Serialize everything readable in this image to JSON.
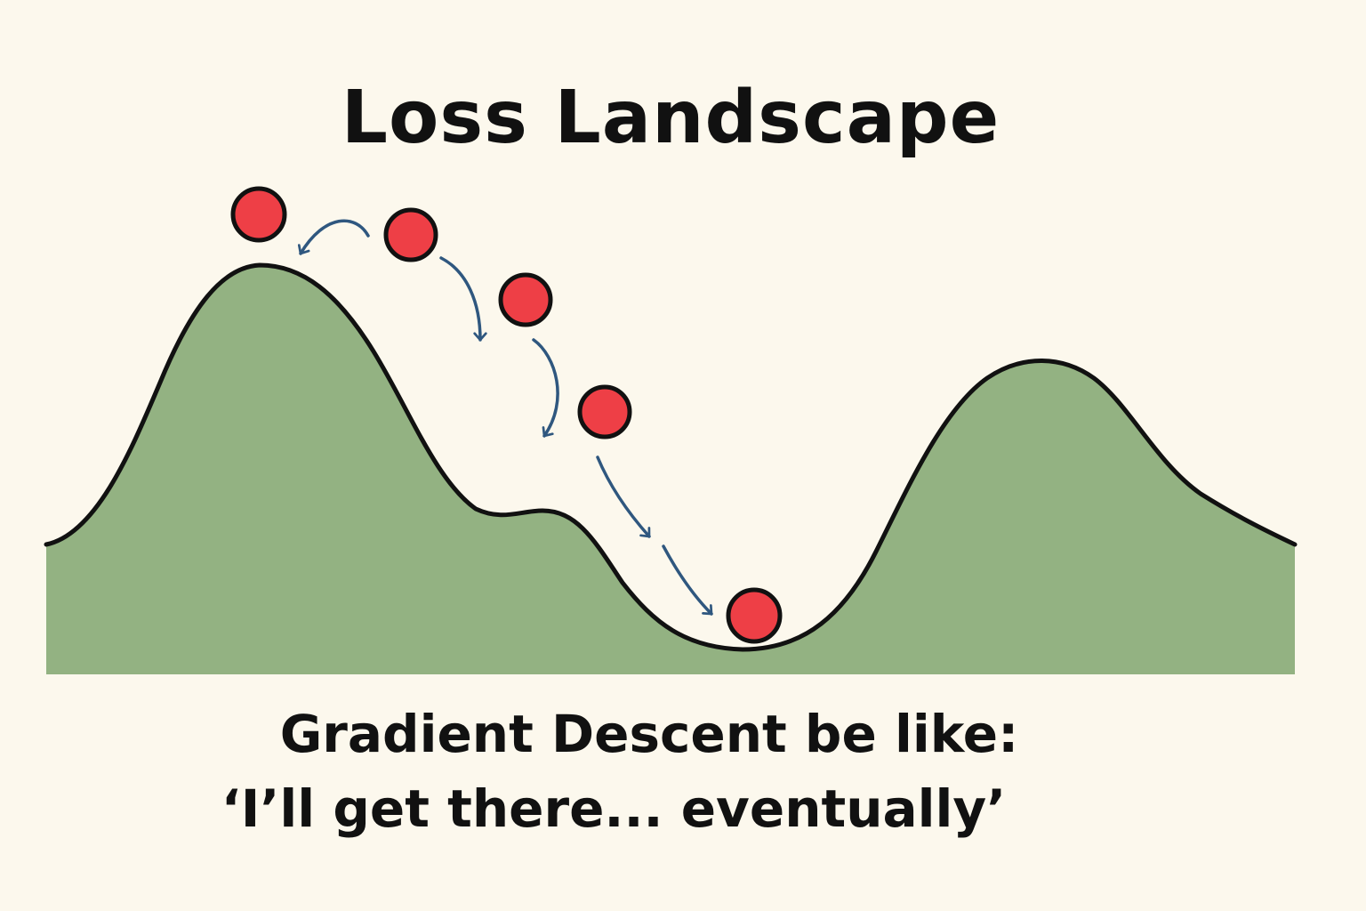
{
  "title": "Loss Landscape",
  "caption": {
    "line1": "Gradient Descent be like:",
    "line2": "‘I’ll get there... eventually’"
  },
  "colors": {
    "background": "#fcf8ed",
    "landscape_fill": "#93b282",
    "outline": "#111111",
    "ball": "#ee3f46",
    "arrow": "#2f577f"
  },
  "balls": [
    {
      "step": 1,
      "label": "ball-overshoot"
    },
    {
      "step": 2,
      "label": "ball-start"
    },
    {
      "step": 3,
      "label": "ball-step-2"
    },
    {
      "step": 4,
      "label": "ball-step-3"
    },
    {
      "step": 5,
      "label": "ball-minimum"
    }
  ]
}
